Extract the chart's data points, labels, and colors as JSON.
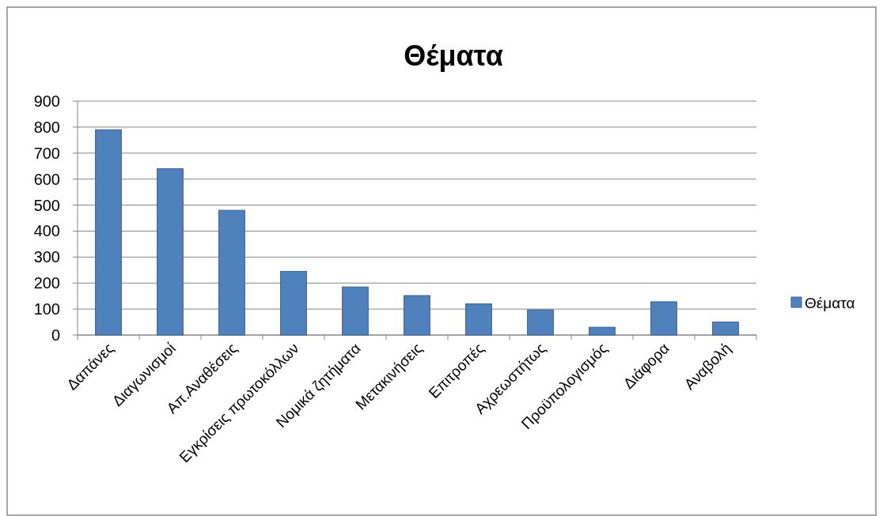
{
  "chart_data": {
    "type": "bar",
    "title": "Θέματα",
    "categories": [
      "Δαπάνες",
      "Διαγωνισμοί",
      "Απ.Αναθέσεις",
      "Εγκρίσεις πρωτοκόλλων",
      "Νομικά ζητήματα",
      "Μετακινήσεις",
      "Επιτροπές",
      "Αχρεωστήτως",
      "Προϋπολογισμός",
      "Διάφορα",
      "Αναβολή"
    ],
    "series": [
      {
        "name": "Θέματα",
        "color": "#4f81bd",
        "values": [
          790,
          640,
          480,
          245,
          185,
          152,
          120,
          97,
          30,
          128,
          50
        ]
      }
    ],
    "ylim": [
      0,
      900
    ],
    "yticks": [
      0,
      100,
      200,
      300,
      400,
      500,
      600,
      700,
      800,
      900
    ],
    "grid": "y",
    "legend": "right"
  }
}
